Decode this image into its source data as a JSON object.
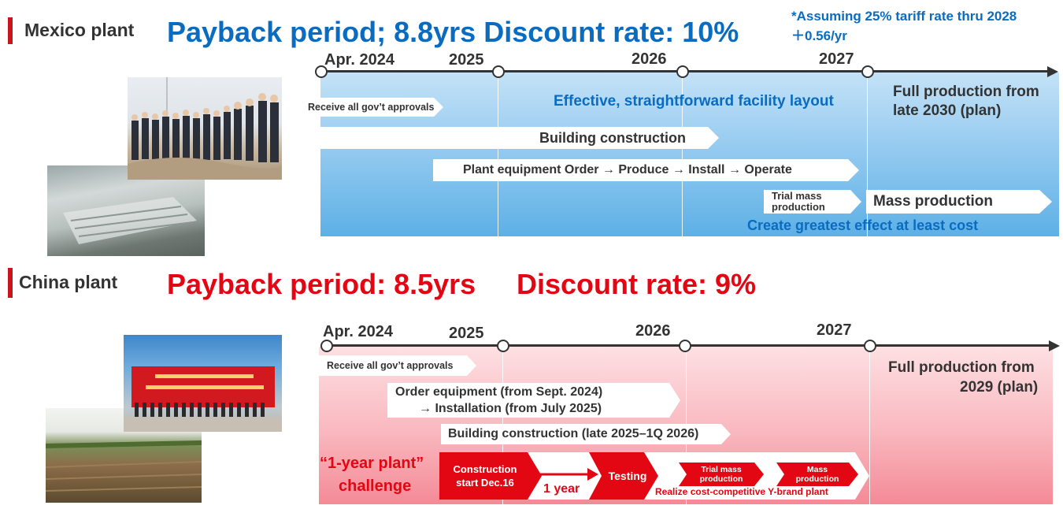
{
  "mexico": {
    "section_title": "Mexico plant",
    "headline": "Payback period; 8.8yrs Discount rate: 10%",
    "note_line1": "*Assuming 25% tariff rate thru 2028",
    "note_line2": "＋0.56/yr",
    "years": [
      "Apr. 2024",
      "2025",
      "2026",
      "2027"
    ],
    "full_production_line1": "Full production from",
    "full_production_line2": "late 2030 (plan)",
    "layout_text": "Effective, straightforward facility layout",
    "approvals": "Receive all gov’t approvals",
    "building": "Building construction",
    "equipment": "Plant equipment  Order → Produce → Install → Operate",
    "trial_line1": "Trial mass",
    "trial_line2": "production",
    "mass": "Mass production",
    "effect_text": "Create greatest effect at least cost"
  },
  "china": {
    "section_title": "China plant",
    "headline_part1": "Payback period: 8.5yrs",
    "headline_part2": "Discount rate: 9%",
    "years": [
      "Apr. 2024",
      "2025",
      "2026",
      "2027"
    ],
    "full_production_line1": "Full production from",
    "full_production_line2": "2029 (plan)",
    "approvals": "Receive all gov’t approvals",
    "order_line1": "Order equipment (from Sept. 2024)",
    "order_line2": "→ Installation (from July 2025)",
    "building": "Building construction (late 2025–1Q 2026)",
    "challenge_line1": "“1-year plant”",
    "challenge_line2": "challenge",
    "construction_line1": "Construction",
    "construction_line2": "start Dec.16",
    "one_year": "1 year",
    "testing": "Testing",
    "trial_line1": "Trial mass",
    "trial_line2": "production",
    "mass_line1": "Mass",
    "mass_line2": "production",
    "realize_text": "Realize cost-competitive Y-brand plant"
  },
  "colors": {
    "blue_accent": "#0a6cc0",
    "red_accent": "#e30613",
    "section_bar": "#c8161d"
  }
}
